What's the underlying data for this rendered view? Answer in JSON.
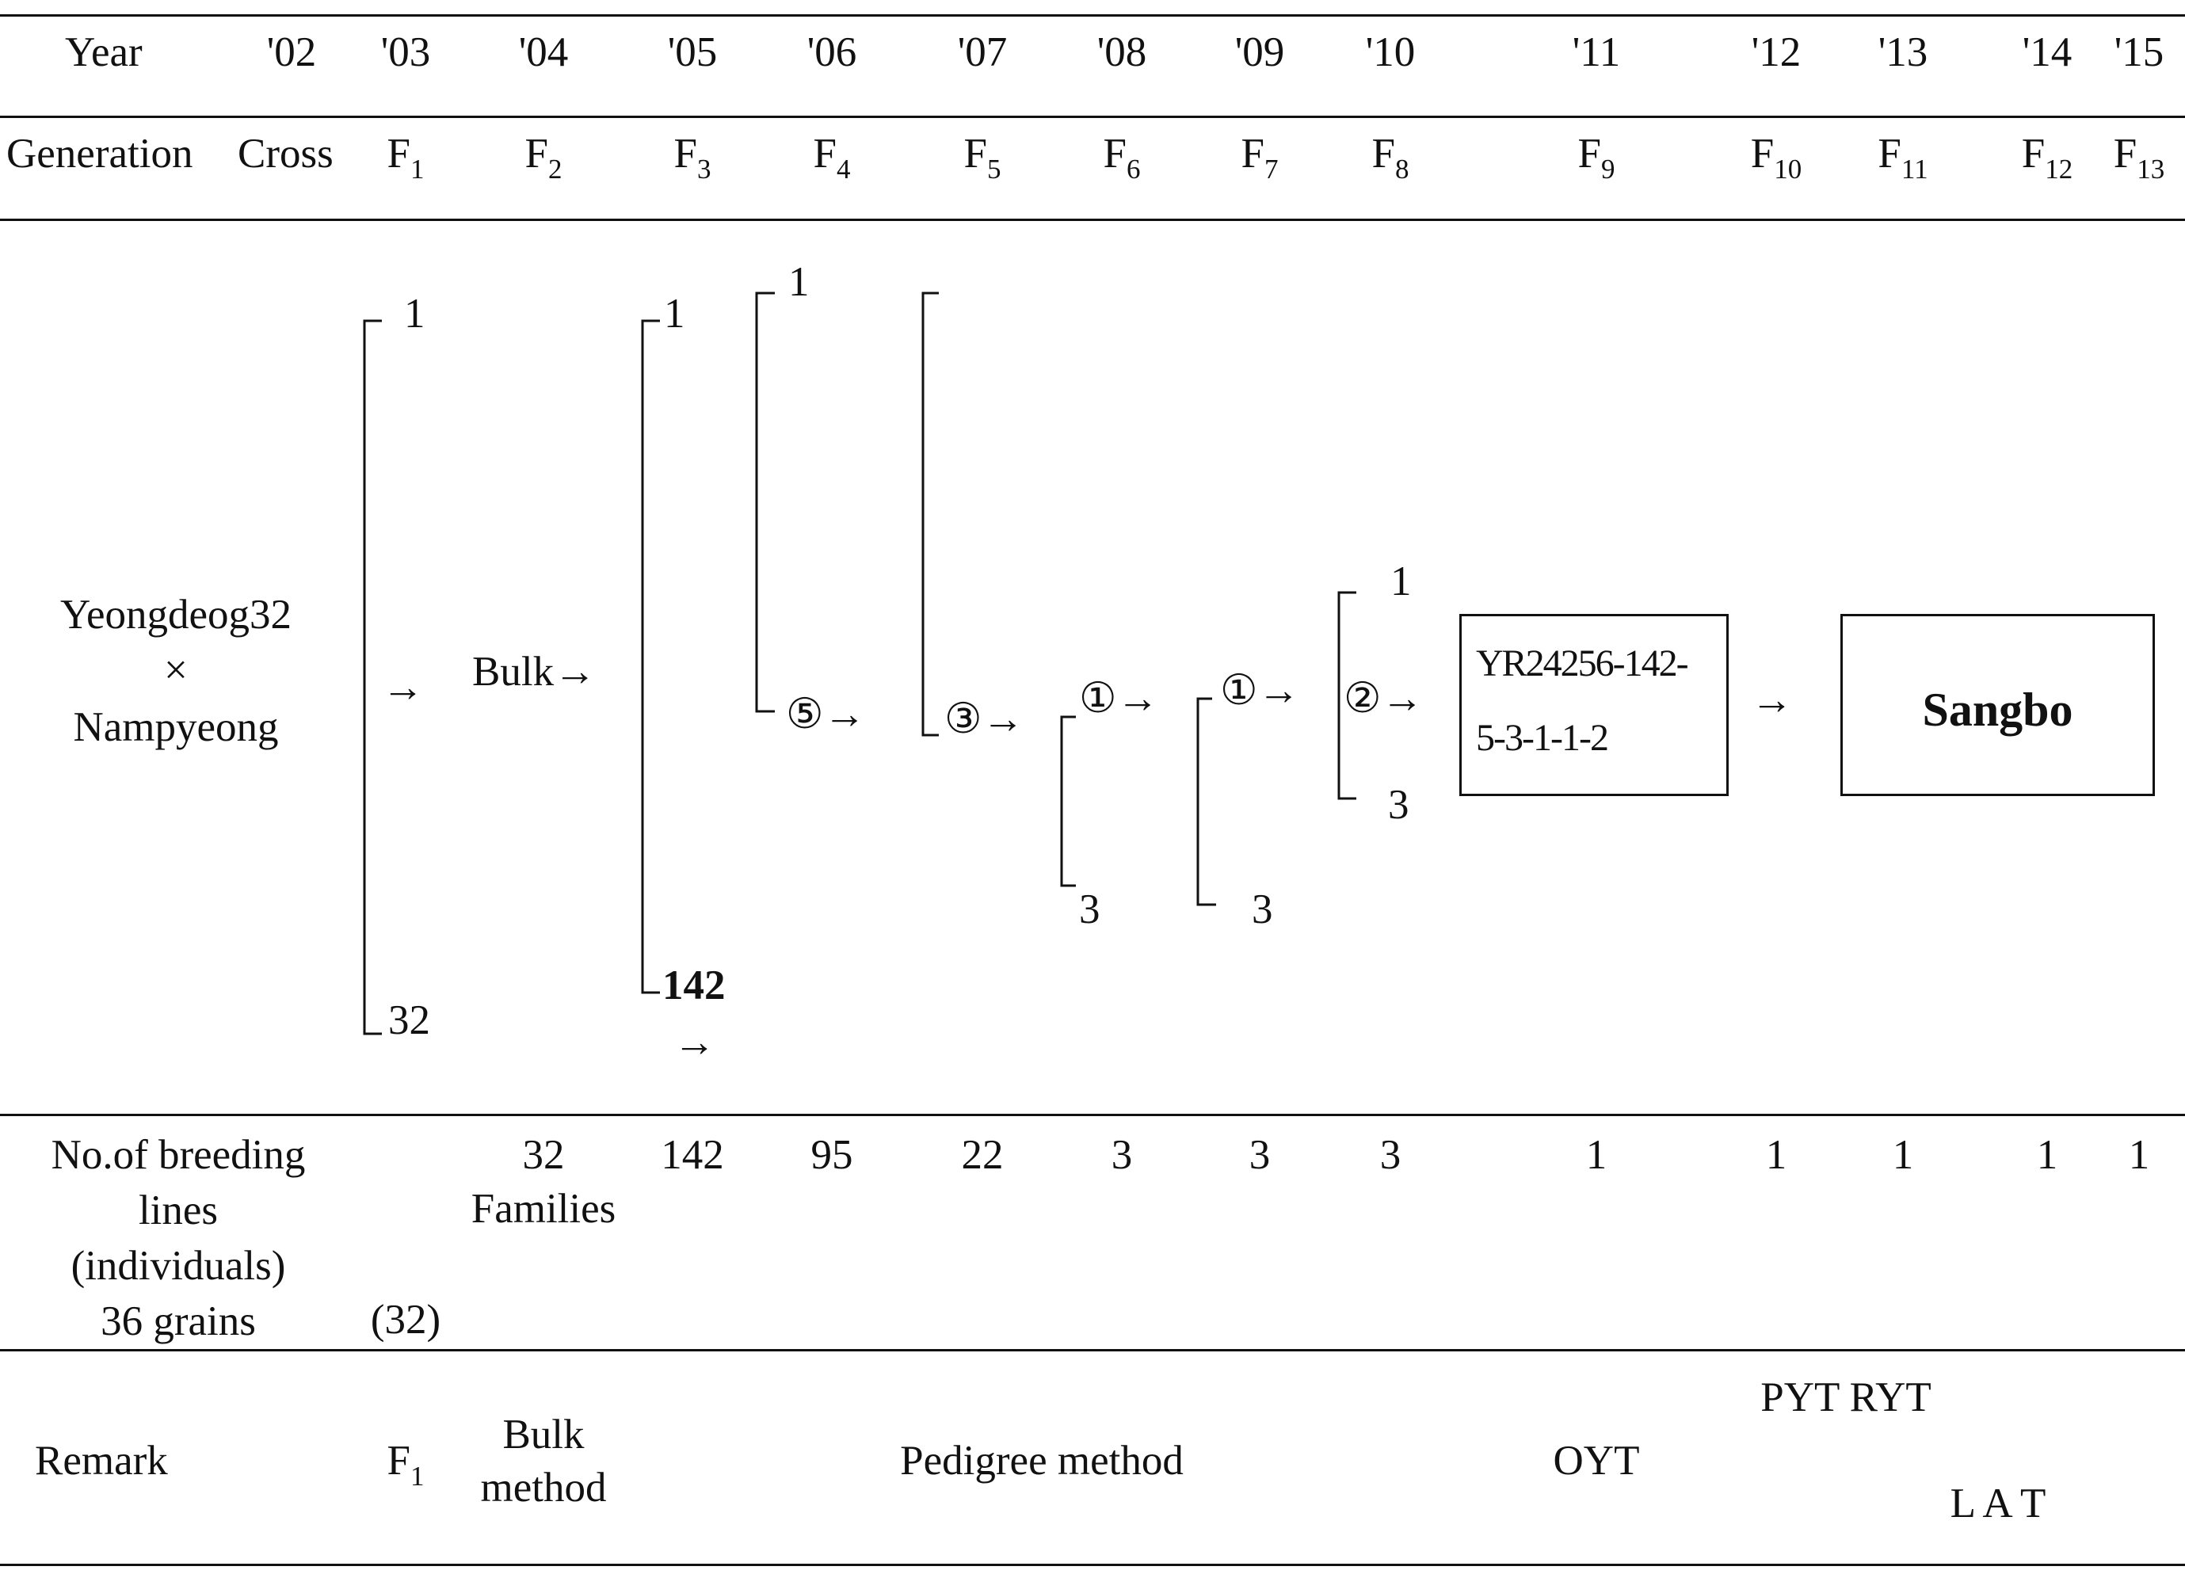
{
  "header": {
    "year_label": "Year",
    "generation_label": "Generation",
    "cross_label": "Cross",
    "columns": [
      {
        "year": "'02",
        "gen": "",
        "gen_sub": ""
      },
      {
        "year": "'03",
        "gen": "F",
        "gen_sub": "1"
      },
      {
        "year": "'04",
        "gen": "F",
        "gen_sub": "2"
      },
      {
        "year": "'05",
        "gen": "F",
        "gen_sub": "3"
      },
      {
        "year": "'06",
        "gen": "F",
        "gen_sub": "4"
      },
      {
        "year": "'07",
        "gen": "F",
        "gen_sub": "5"
      },
      {
        "year": "'08",
        "gen": "F",
        "gen_sub": "6"
      },
      {
        "year": "'09",
        "gen": "F",
        "gen_sub": "7"
      },
      {
        "year": "'10",
        "gen": "F",
        "gen_sub": "8"
      },
      {
        "year": "'11",
        "gen": "F",
        "gen_sub": "9"
      },
      {
        "year": "'12",
        "gen": "F",
        "gen_sub": "10"
      },
      {
        "year": "'13",
        "gen": "F",
        "gen_sub": "11"
      },
      {
        "year": "'14",
        "gen": "F",
        "gen_sub": "12"
      },
      {
        "year": "'15",
        "gen": "F",
        "gen_sub": "13"
      }
    ]
  },
  "diagram": {
    "cross_parent_1": "Yeongdeog32",
    "cross_symbol": "×",
    "cross_parent_2": "Nampyeong",
    "arrow": "→",
    "bulk_label": "Bulk→",
    "f1_top": "1",
    "f1_bottom": "32",
    "f3_top": "1",
    "f3_bottom": "142",
    "f4_top": "1",
    "f4_selected": "⑤→",
    "f5_selected": "③→",
    "f6_selected": "①→",
    "f6_bottom": "3",
    "f7_selected": "①→",
    "f7_bottom": "3",
    "f8_top": "1",
    "f8_selected": "②→",
    "f8_bottom": "3",
    "line_code_1": "YR24256-142-",
    "line_code_2": "5-3-1-1-2",
    "final_variety": "Sangbo"
  },
  "breeding": {
    "label_lines": [
      "No.of breeding",
      "lines",
      "(individuals)",
      "36 grains"
    ],
    "f1_count": "(32)",
    "f2_count": "32",
    "f2_unit": "Families",
    "counts": [
      {
        "year": "'05",
        "value": "142"
      },
      {
        "year": "'06",
        "value": "95"
      },
      {
        "year": "'07",
        "value": "22"
      },
      {
        "year": "'08",
        "value": "3"
      },
      {
        "year": "'09",
        "value": "3"
      },
      {
        "year": "'10",
        "value": "3"
      },
      {
        "year": "'11",
        "value": "1"
      },
      {
        "year": "'12",
        "value": "1"
      },
      {
        "year": "'13",
        "value": "1"
      },
      {
        "year": "'14",
        "value": "1"
      },
      {
        "year": "'15",
        "value": "1"
      }
    ]
  },
  "remark": {
    "label": "Remark",
    "f1": "F",
    "f1_sub": "1",
    "bulk_method_1": "Bulk",
    "bulk_method_2": "method",
    "pedigree": "Pedigree method",
    "oyt": "OYT",
    "pyt_ryt": "PYT RYT",
    "lat": "L A T"
  }
}
